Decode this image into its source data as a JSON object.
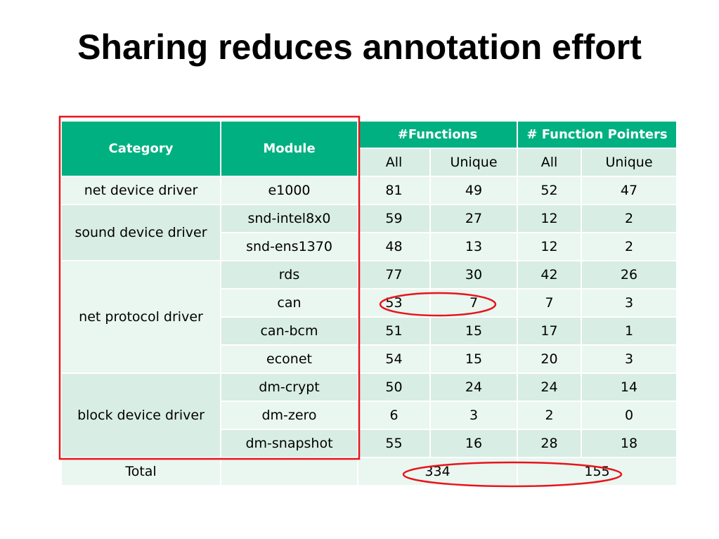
{
  "slide": {
    "title": "Sharing reduces annotation effort"
  },
  "table": {
    "headers": {
      "category": "Category",
      "module": "Module",
      "functions": "#Functions",
      "function_pointers": "# Function Pointers",
      "all": "All",
      "unique": "Unique"
    },
    "rows": [
      {
        "category": "net device driver",
        "module": "e1000",
        "f_all": "81",
        "f_unique": "49",
        "fp_all": "52",
        "fp_unique": "47"
      },
      {
        "category": "sound device driver",
        "module": "snd-intel8x0",
        "f_all": "59",
        "f_unique": "27",
        "fp_all": "12",
        "fp_unique": "2"
      },
      {
        "module": "snd-ens1370",
        "f_all": "48",
        "f_unique": "13",
        "fp_all": "12",
        "fp_unique": "2"
      },
      {
        "category": "net protocol driver",
        "module": "rds",
        "f_all": "77",
        "f_unique": "30",
        "fp_all": "42",
        "fp_unique": "26"
      },
      {
        "module": "can",
        "f_all": "53",
        "f_unique": "7",
        "fp_all": "7",
        "fp_unique": "3"
      },
      {
        "module": "can-bcm",
        "f_all": "51",
        "f_unique": "15",
        "fp_all": "17",
        "fp_unique": "1"
      },
      {
        "module": "econet",
        "f_all": "54",
        "f_unique": "15",
        "fp_all": "20",
        "fp_unique": "3"
      },
      {
        "category": "block device driver",
        "module": "dm-crypt",
        "f_all": "50",
        "f_unique": "24",
        "fp_all": "24",
        "fp_unique": "14"
      },
      {
        "module": "dm-zero",
        "f_all": "6",
        "f_unique": "3",
        "fp_all": "2",
        "fp_unique": "0"
      },
      {
        "module": "dm-snapshot",
        "f_all": "55",
        "f_unique": "16",
        "fp_all": "28",
        "fp_unique": "18"
      }
    ],
    "total": {
      "label": "Total",
      "functions": "334",
      "function_pointers": "155"
    }
  },
  "annotations": {
    "color": "#e8141b"
  }
}
